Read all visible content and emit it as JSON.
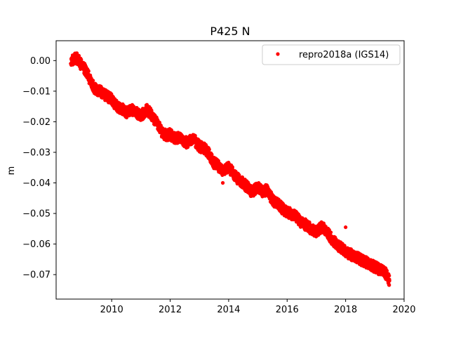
{
  "chart_data": {
    "type": "scatter",
    "title": "P425 N",
    "xlabel": "",
    "ylabel": "m",
    "xlim": [
      2008.1,
      2020.0
    ],
    "ylim": [
      -0.078,
      0.0065
    ],
    "xticks": [
      2010,
      2012,
      2014,
      2016,
      2018,
      2020
    ],
    "xtick_labels": [
      "2010",
      "2012",
      "2014",
      "2016",
      "2018",
      "2020"
    ],
    "yticks": [
      0.0,
      -0.01,
      -0.02,
      -0.03,
      -0.04,
      -0.05,
      -0.06,
      -0.07
    ],
    "ytick_labels": [
      "0.00",
      "−0.01",
      "−0.02",
      "−0.03",
      "−0.04",
      "−0.05",
      "−0.06",
      "−0.07"
    ],
    "grid": false,
    "legend": {
      "placement": "top-right",
      "entries": [
        "repro2018a (IGS14)"
      ]
    },
    "series": [
      {
        "name": "repro2018a (IGS14)",
        "color": "#ff0000",
        "marker": "dot",
        "x": [
          2008.6,
          2008.7,
          2008.8,
          2008.9,
          2009.0,
          2009.1,
          2009.2,
          2009.3,
          2009.4,
          2009.5,
          2009.6,
          2009.7,
          2009.8,
          2009.9,
          2010.0,
          2010.1,
          2010.2,
          2010.3,
          2010.4,
          2010.5,
          2010.6,
          2010.7,
          2010.8,
          2010.9,
          2011.0,
          2011.1,
          2011.2,
          2011.3,
          2011.4,
          2011.5,
          2011.6,
          2011.7,
          2011.8,
          2011.9,
          2012.0,
          2012.1,
          2012.2,
          2012.3,
          2012.4,
          2012.5,
          2012.6,
          2012.7,
          2012.8,
          2012.9,
          2013.0,
          2013.1,
          2013.2,
          2013.3,
          2013.4,
          2013.5,
          2013.6,
          2013.7,
          2013.8,
          2013.9,
          2014.0,
          2014.1,
          2014.2,
          2014.3,
          2014.4,
          2014.5,
          2014.6,
          2014.7,
          2014.8,
          2014.9,
          2015.0,
          2015.1,
          2015.2,
          2015.3,
          2015.4,
          2015.5,
          2015.6,
          2015.7,
          2015.8,
          2015.9,
          2016.0,
          2016.1,
          2016.2,
          2016.3,
          2016.4,
          2016.5,
          2016.6,
          2016.7,
          2016.8,
          2016.9,
          2017.0,
          2017.1,
          2017.2,
          2017.3,
          2017.4,
          2017.5,
          2017.6,
          2017.7,
          2017.8,
          2017.9,
          2018.0,
          2018.1,
          2018.2,
          2018.3,
          2018.4,
          2018.5,
          2018.6,
          2018.7,
          2018.8,
          2018.9,
          2019.0,
          2019.1,
          2019.2,
          2019.3,
          2019.4,
          2019.5,
          2013.8,
          2018.0
        ],
        "y": [
          -0.001,
          0.0005,
          0.001,
          -0.0005,
          -0.002,
          -0.003,
          -0.005,
          -0.007,
          -0.009,
          -0.0095,
          -0.01,
          -0.0105,
          -0.0115,
          -0.012,
          -0.0125,
          -0.014,
          -0.015,
          -0.0155,
          -0.016,
          -0.017,
          -0.0165,
          -0.016,
          -0.0165,
          -0.0175,
          -0.018,
          -0.017,
          -0.016,
          -0.017,
          -0.0185,
          -0.0195,
          -0.021,
          -0.023,
          -0.024,
          -0.0245,
          -0.024,
          -0.025,
          -0.0255,
          -0.025,
          -0.026,
          -0.0265,
          -0.027,
          -0.026,
          -0.0255,
          -0.027,
          -0.028,
          -0.0285,
          -0.029,
          -0.03,
          -0.032,
          -0.0335,
          -0.034,
          -0.035,
          -0.036,
          -0.0355,
          -0.035,
          -0.036,
          -0.0375,
          -0.0385,
          -0.0395,
          -0.04,
          -0.041,
          -0.042,
          -0.043,
          -0.042,
          -0.0415,
          -0.0425,
          -0.043,
          -0.042,
          -0.044,
          -0.0455,
          -0.0465,
          -0.047,
          -0.048,
          -0.049,
          -0.0495,
          -0.05,
          -0.0505,
          -0.051,
          -0.052,
          -0.053,
          -0.0535,
          -0.054,
          -0.055,
          -0.0555,
          -0.056,
          -0.055,
          -0.0545,
          -0.0555,
          -0.0565,
          -0.058,
          -0.059,
          -0.06,
          -0.061,
          -0.0615,
          -0.0625,
          -0.063,
          -0.0635,
          -0.064,
          -0.0645,
          -0.065,
          -0.0655,
          -0.066,
          -0.0665,
          -0.067,
          -0.0675,
          -0.068,
          -0.0685,
          -0.069,
          -0.07,
          -0.072,
          -0.04,
          -0.0545
        ]
      }
    ]
  }
}
